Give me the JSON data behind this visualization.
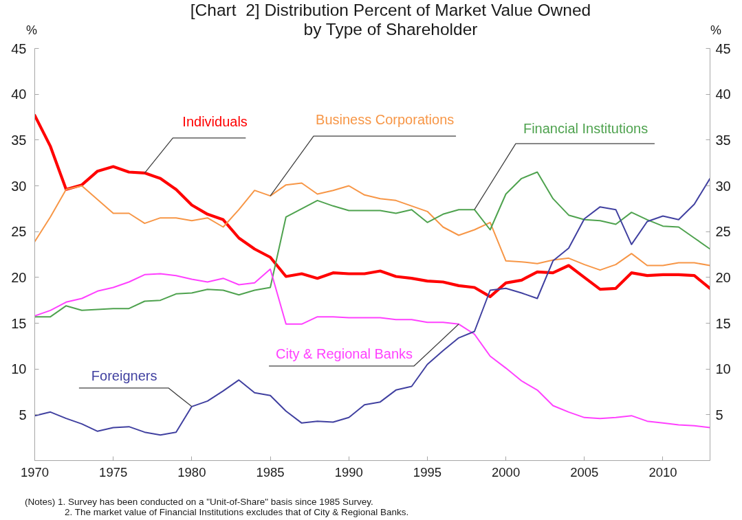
{
  "chart_data": {
    "type": "line",
    "title": "[Chart  2] Distribution Percent of Market Value Owned\nby Type of Shareholder",
    "ylabel": "%",
    "y2label": "%",
    "x": [
      1970,
      1971,
      1972,
      1973,
      1974,
      1975,
      1976,
      1977,
      1978,
      1979,
      1980,
      1981,
      1982,
      1983,
      1984,
      1985,
      1986,
      1987,
      1988,
      1989,
      1990,
      1991,
      1992,
      1993,
      1994,
      1995,
      1996,
      1997,
      1998,
      1999,
      2000,
      2001,
      2002,
      2003,
      2004,
      2005,
      2006,
      2007,
      2008,
      2009,
      2010,
      2011,
      2012,
      2013
    ],
    "series": [
      {
        "name": "Individuals",
        "color": "#ff0000",
        "values": [
          37.7,
          34.3,
          29.6,
          30.1,
          31.6,
          32.1,
          31.5,
          31.4,
          30.8,
          29.6,
          27.9,
          26.9,
          26.3,
          24.3,
          23.1,
          22.2,
          20.1,
          20.4,
          19.9,
          20.5,
          20.4,
          20.4,
          20.7,
          20.1,
          19.9,
          19.6,
          19.5,
          19.1,
          18.9,
          17.9,
          19.4,
          19.7,
          20.6,
          20.5,
          21.3,
          20.0,
          18.7,
          18.8,
          20.5,
          20.2,
          20.3,
          20.3,
          20.2,
          18.8
        ]
      },
      {
        "name": "Business Corporations",
        "color": "#f79646",
        "values": [
          23.9,
          26.6,
          29.6,
          30.0,
          28.5,
          27.0,
          27.0,
          25.9,
          26.5,
          26.5,
          26.2,
          26.5,
          25.5,
          27.4,
          29.5,
          28.9,
          30.1,
          30.3,
          29.1,
          29.5,
          30.0,
          29.0,
          28.6,
          28.4,
          27.8,
          27.2,
          25.5,
          24.6,
          25.2,
          26.0,
          21.8,
          21.7,
          21.5,
          21.9,
          22.1,
          21.4,
          20.8,
          21.4,
          22.6,
          21.3,
          21.3,
          21.6,
          21.6,
          21.3
        ]
      },
      {
        "name": "Financial Institutions",
        "color": "#4ea24e",
        "values": [
          15.7,
          15.7,
          16.9,
          16.4,
          16.5,
          16.6,
          16.6,
          17.4,
          17.5,
          18.2,
          18.3,
          18.7,
          18.6,
          18.1,
          18.6,
          18.9,
          26.6,
          27.5,
          28.4,
          27.8,
          27.3,
          27.3,
          27.3,
          27.0,
          27.4,
          26.0,
          26.9,
          27.4,
          27.4,
          25.2,
          29.1,
          30.8,
          31.5,
          28.6,
          26.8,
          26.3,
          26.2,
          25.8,
          27.1,
          26.3,
          25.6,
          25.5,
          24.3,
          23.1
        ]
      },
      {
        "name": "City & Regional Banks",
        "color": "#ff40ff",
        "values": [
          15.8,
          16.4,
          17.3,
          17.7,
          18.5,
          18.9,
          19.5,
          20.3,
          20.4,
          20.2,
          19.8,
          19.5,
          19.9,
          19.2,
          19.4,
          20.9,
          14.9,
          14.9,
          15.7,
          15.7,
          15.6,
          15.6,
          15.6,
          15.4,
          15.4,
          15.1,
          15.1,
          14.9,
          13.8,
          11.4,
          10.1,
          8.7,
          7.7,
          6.0,
          5.3,
          4.7,
          4.6,
          4.7,
          4.9,
          4.3,
          4.1,
          3.9,
          3.8,
          3.6
        ]
      },
      {
        "name": "Foreigners",
        "color": "#4040a0",
        "values": [
          4.9,
          5.3,
          4.6,
          4.0,
          3.2,
          3.6,
          3.7,
          3.1,
          2.8,
          3.1,
          5.9,
          6.5,
          7.6,
          8.8,
          7.4,
          7.1,
          5.4,
          4.1,
          4.3,
          4.2,
          4.7,
          6.1,
          6.4,
          7.7,
          8.1,
          10.5,
          12.0,
          13.4,
          14.1,
          18.6,
          18.8,
          18.3,
          17.7,
          21.8,
          23.2,
          26.4,
          27.7,
          27.4,
          23.6,
          26.1,
          26.7,
          26.3,
          28.0,
          30.8
        ]
      }
    ],
    "xlim": [
      1970,
      2013
    ],
    "xticks": [
      1970,
      1975,
      1980,
      1985,
      1990,
      1995,
      2000,
      2005,
      2010
    ],
    "ylim": [
      0,
      45
    ],
    "yticks": [
      5,
      10,
      15,
      20,
      25,
      30,
      35,
      40,
      45
    ],
    "y2lim": [
      0,
      45
    ],
    "y2ticks": [
      5,
      10,
      15,
      20,
      25,
      30,
      35,
      40,
      45
    ],
    "line_style": "solid",
    "annotations": [
      "(Notes) 1. Survey has been conducted on a \"Unit-of-Share\" basis since 1985 Survey.",
      "2. The market value of Financial Institutions excludes that of City & Regional Banks."
    ]
  }
}
